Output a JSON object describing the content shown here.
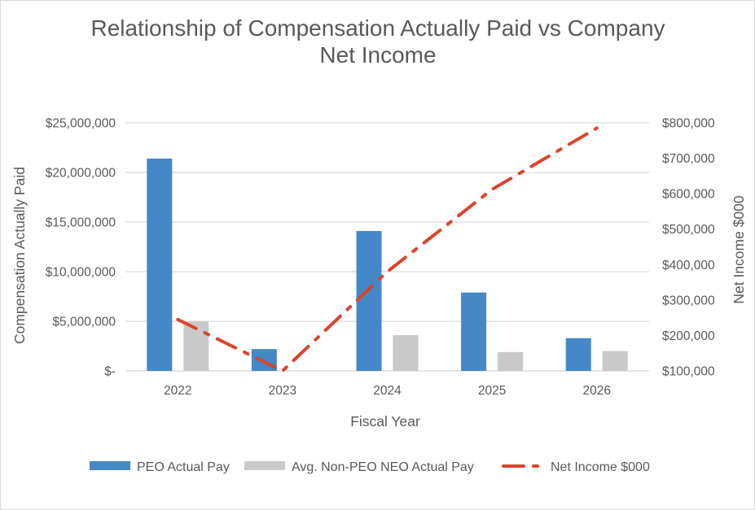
{
  "chart_data": {
    "type": "bar",
    "title_lines": [
      "Relationship of Compensation Actually Paid vs Company",
      "Net Income"
    ],
    "xlabel": "Fiscal Year",
    "ylabel_left": "Compensation Actually Paid",
    "ylabel_right": "Net Income $000",
    "categories": [
      "2022",
      "2023",
      "2024",
      "2025",
      "2026"
    ],
    "y_left": {
      "min": 0,
      "max": 25000000,
      "ticks": [
        {
          "value": 0,
          "label": "$-"
        },
        {
          "value": 5000000,
          "label": "$5,000,000"
        },
        {
          "value": 10000000,
          "label": "$10,000,000"
        },
        {
          "value": 15000000,
          "label": "$15,000,000"
        },
        {
          "value": 20000000,
          "label": "$20,000,000"
        },
        {
          "value": 25000000,
          "label": "$25,000,000"
        }
      ]
    },
    "y_right": {
      "min": 100000,
      "max": 800000,
      "ticks": [
        {
          "value": 100000,
          "label": "$100,000"
        },
        {
          "value": 200000,
          "label": "$200,000"
        },
        {
          "value": 300000,
          "label": "$300,000"
        },
        {
          "value": 400000,
          "label": "$400,000"
        },
        {
          "value": 500000,
          "label": "$500,000"
        },
        {
          "value": 600000,
          "label": "$600,000"
        },
        {
          "value": 700000,
          "label": "$700,000"
        },
        {
          "value": 800000,
          "label": "$800,000"
        }
      ]
    },
    "grid": true,
    "legend_position": "bottom",
    "series": [
      {
        "name": "PEO Actual Pay",
        "kind": "bar",
        "axis": "left",
        "color": "#4488c8",
        "values": [
          21400000,
          2200000,
          14100000,
          7900000,
          3300000
        ]
      },
      {
        "name": "Avg. Non-PEO NEO Actual Pay",
        "kind": "bar",
        "axis": "left",
        "color": "#c9c9c9",
        "values": [
          5000000,
          0,
          3600000,
          1900000,
          2000000
        ]
      },
      {
        "name": "Net Income $000",
        "kind": "line",
        "style": "dash-dot",
        "axis": "right",
        "color": "#d9442b",
        "values": [
          245000,
          100000,
          380000,
          612000,
          785000
        ]
      }
    ]
  }
}
